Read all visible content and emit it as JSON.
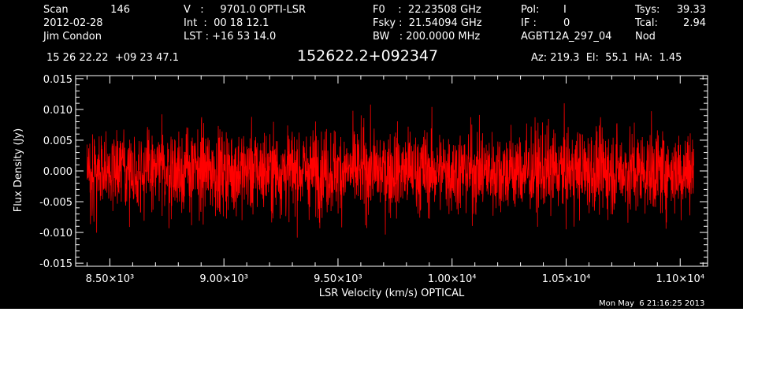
{
  "header": {
    "col1": {
      "scan_label": "Scan",
      "scan_value": "146",
      "date": "2012-02-28",
      "observer": "Jim Condon"
    },
    "col2": {
      "v_text": "V   :     9701.0 OPTI-LSR",
      "int_text": "Int  :  00 18 12.1",
      "lst_text": "LST : +16 53 14.0"
    },
    "col3": {
      "f0_text": "F0    :  22.23508 GHz",
      "fsky_text": "Fsky :  21.54094 GHz",
      "bw_text": "BW   : 200.0000 MHz"
    },
    "col4": {
      "pol_label": "Pol:",
      "pol_value": "I",
      "if_label": "IF :",
      "if_value": "0",
      "project": "AGBT12A_297_04"
    },
    "col5": {
      "tsys_label": "Tsys:",
      "tsys_value": "39.33",
      "tcal_label": "Tcal:",
      "tcal_value": "2.94",
      "mode": "Nod"
    },
    "coords": "15 26 22.22  +09 23 47.1",
    "source": "152622.2+092347",
    "pointing": "Az: 219.3  El:  55.1  HA:  1.45",
    "timestamp": "Mon May  6 21:16:25 2013"
  },
  "chart_data": {
    "type": "line",
    "title": "152622.2+092347",
    "xlabel": "LSR Velocity (km/s) OPTICAL",
    "ylabel": "Flux Density (Jy)",
    "xlim": [
      8350,
      11120
    ],
    "ylim": [
      -0.0155,
      0.0155
    ],
    "x_ticks": [
      {
        "value": 8500,
        "label": "8.50×10³"
      },
      {
        "value": 9000,
        "label": "9.00×10³"
      },
      {
        "value": 9500,
        "label": "9.50×10³"
      },
      {
        "value": 10000,
        "label": "1.00×10⁴"
      },
      {
        "value": 10500,
        "label": "1.05×10⁴"
      },
      {
        "value": 11000,
        "label": "1.10×10⁴"
      }
    ],
    "y_ticks": [
      {
        "value": 0.015,
        "label": "0.015"
      },
      {
        "value": 0.01,
        "label": "0.010"
      },
      {
        "value": 0.005,
        "label": "0.005"
      },
      {
        "value": 0.0,
        "label": "0.000"
      },
      {
        "value": -0.005,
        "label": "-0.005"
      },
      {
        "value": -0.01,
        "label": "-0.010"
      },
      {
        "value": -0.015,
        "label": "-0.015"
      }
    ],
    "grid": false,
    "series": [
      {
        "color": "#ff0000",
        "x_range": [
          8400,
          11060
        ],
        "n_points": 2660,
        "rms": 0.0038,
        "mean": 0.0,
        "min": -0.0135,
        "max": 0.0138
      }
    ]
  }
}
